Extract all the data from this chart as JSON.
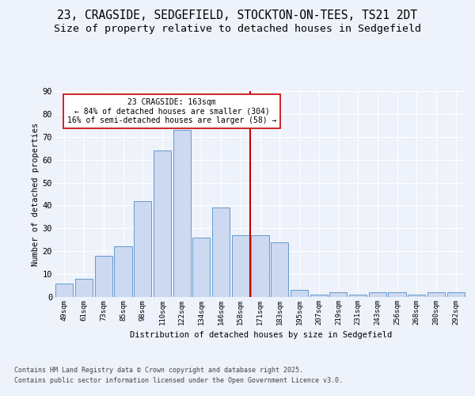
{
  "title_line1": "23, CRAGSIDE, SEDGEFIELD, STOCKTON-ON-TEES, TS21 2DT",
  "title_line2": "Size of property relative to detached houses in Sedgefield",
  "xlabel": "Distribution of detached houses by size in Sedgefield",
  "ylabel": "Number of detached properties",
  "footer_line1": "Contains HM Land Registry data © Crown copyright and database right 2025.",
  "footer_line2": "Contains public sector information licensed under the Open Government Licence v3.0.",
  "categories": [
    "49sqm",
    "61sqm",
    "73sqm",
    "85sqm",
    "98sqm",
    "110sqm",
    "122sqm",
    "134sqm",
    "146sqm",
    "158sqm",
    "171sqm",
    "183sqm",
    "195sqm",
    "207sqm",
    "219sqm",
    "231sqm",
    "243sqm",
    "256sqm",
    "268sqm",
    "280sqm",
    "292sqm"
  ],
  "values": [
    6,
    8,
    18,
    22,
    42,
    64,
    73,
    26,
    39,
    27,
    27,
    24,
    3,
    1,
    2,
    1,
    2,
    2,
    1,
    2,
    2
  ],
  "bar_color": "#ccd9f0",
  "bar_edge_color": "#6699cc",
  "vline_index": 9.5,
  "vline_color": "#cc0000",
  "annotation_title": "23 CRAGSIDE: 163sqm",
  "annotation_line1": "← 84% of detached houses are smaller (304)",
  "annotation_line2": "16% of semi-detached houses are larger (58) →",
  "annotation_box_color": "#cc0000",
  "annotation_box_bg": "#ffffff",
  "ylim": [
    0,
    90
  ],
  "yticks": [
    0,
    10,
    20,
    30,
    40,
    50,
    60,
    70,
    80,
    90
  ],
  "bg_color": "#eef2fb",
  "grid_color": "#ffffff",
  "title_fontsize": 10.5,
  "subtitle_fontsize": 9.5
}
